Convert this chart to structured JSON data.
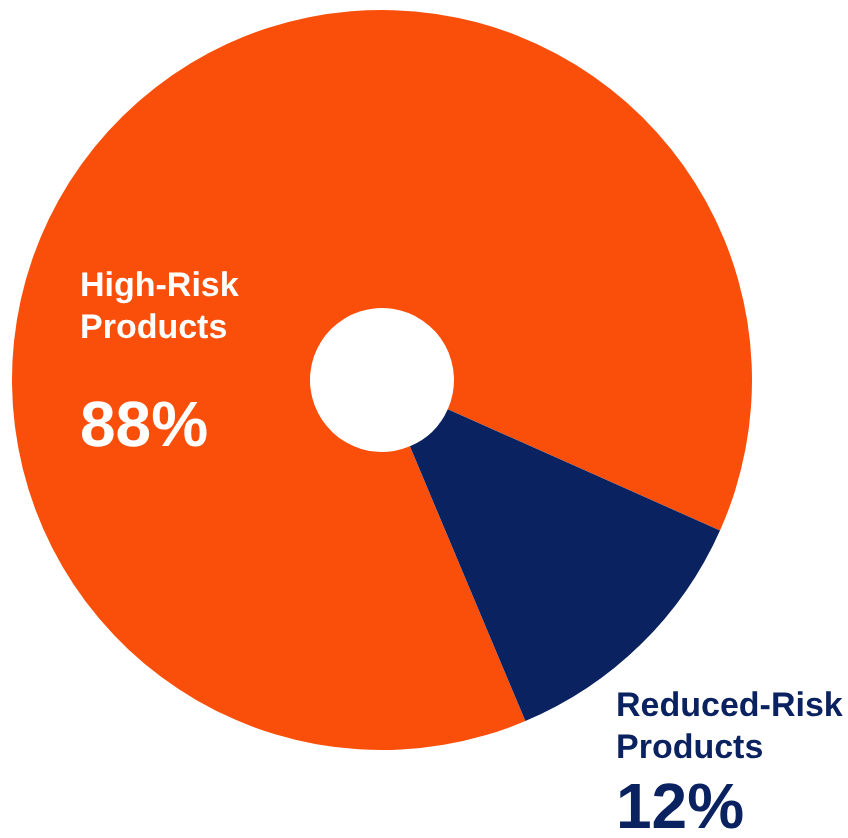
{
  "chart_data": {
    "type": "donut",
    "categories": [
      "High-Risk Products",
      "Reduced-Risk Products"
    ],
    "values": [
      88,
      12
    ],
    "value_labels": [
      "88%",
      "12%"
    ],
    "colors": [
      "#fa4f0a",
      "#0b2260"
    ]
  }
}
